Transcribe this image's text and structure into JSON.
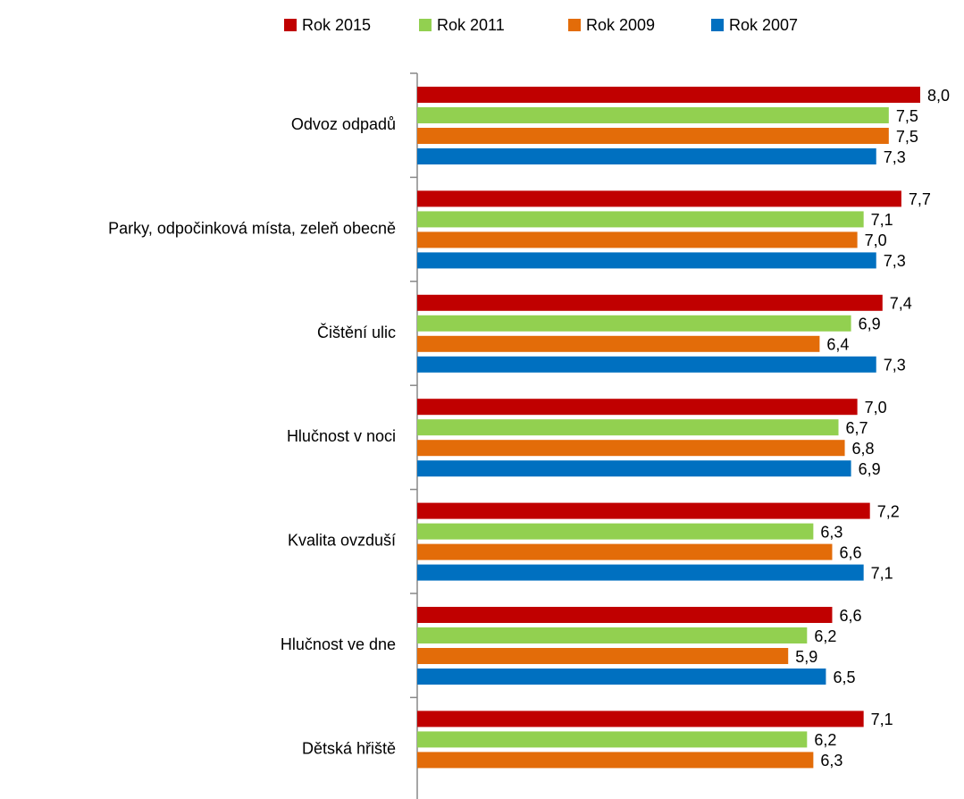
{
  "chart_data": {
    "type": "bar",
    "orientation": "horizontal",
    "categories": [
      "Odvoz odpadů",
      "Parky, odpočinková místa, zeleň obecně",
      "Čištění ulic",
      "Hlučnost v noci",
      "Kvalita ovzduší",
      "Hlučnost ve dne",
      "Dětská hřiště"
    ],
    "series": [
      {
        "name": "Rok 2015",
        "color": "#c00000",
        "values": [
          8.0,
          7.7,
          7.4,
          7.0,
          7.2,
          6.6,
          7.1
        ],
        "value_labels": [
          "8,0",
          "7,7",
          "7,4",
          "7,0",
          "7,2",
          "6,6",
          "7,1"
        ]
      },
      {
        "name": "Rok 2011",
        "color": "#92d050",
        "values": [
          7.5,
          7.1,
          6.9,
          6.7,
          6.3,
          6.2,
          6.2
        ],
        "value_labels": [
          "7,5",
          "7,1",
          "6,9",
          "6,7",
          "6,3",
          "6,2",
          "6,2"
        ]
      },
      {
        "name": "Rok 2009",
        "color": "#e36c09",
        "values": [
          7.5,
          7.0,
          6.4,
          6.8,
          6.6,
          5.9,
          6.3
        ],
        "value_labels": [
          "7,5",
          "7,0",
          "6,4",
          "6,8",
          "6,6",
          "5,9",
          "6,3"
        ]
      },
      {
        "name": "Rok 2007",
        "color": "#0070c0",
        "values": [
          7.3,
          7.3,
          7.3,
          6.9,
          7.1,
          6.5,
          null
        ],
        "value_labels": [
          "7,3",
          "7,3",
          "7,3",
          "6,9",
          "7,1",
          "6,5",
          null
        ]
      }
    ],
    "xlim": [
      0,
      8
    ],
    "legend": "top"
  }
}
